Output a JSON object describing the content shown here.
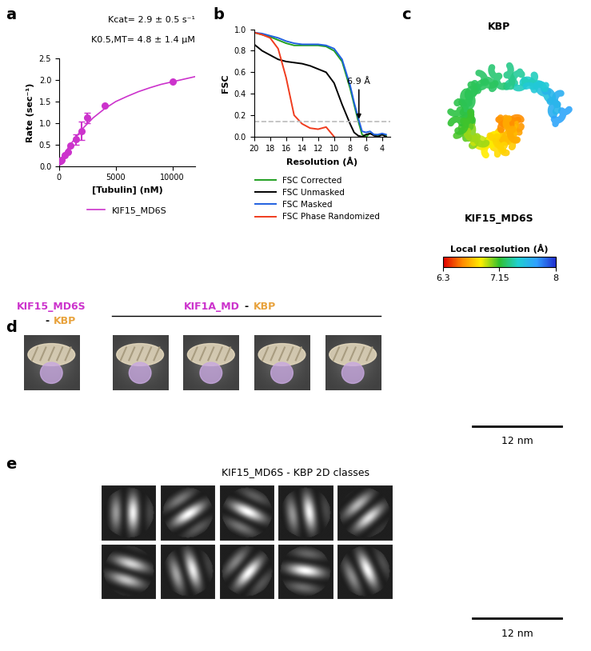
{
  "chart_data": [
    {
      "panel": "a",
      "type": "scatter",
      "color": "#cc33cc",
      "marker": "o",
      "annotations": [
        "Kcat= 2.9 ± 0.5 s⁻¹",
        "K0.5,MT= 4.8 ± 1.4 µM"
      ],
      "xlabel": "[Tubulin] (nM)",
      "ylabel": "Rate (sec⁻¹)",
      "xlim": [
        0,
        12000
      ],
      "ylim": [
        0,
        2.5
      ],
      "xticks": [
        0,
        5000,
        10000
      ],
      "yticks": [
        {
          "value": 0,
          "label": "0.0"
        },
        {
          "value": 0.5,
          "label": "0.5"
        },
        {
          "value": 1.0,
          "label": "1.0"
        },
        {
          "value": 1.5,
          "label": "1.5"
        },
        {
          "value": 2.0,
          "label": "2.0"
        },
        {
          "value": 2.5,
          "label": "2.5"
        }
      ],
      "legend": "upper center",
      "series": [
        {
          "type": "scatter",
          "x": [
            0,
            125,
            250,
            500,
            750,
            1000,
            1500,
            2000,
            2500,
            4000,
            10000
          ],
          "values": [
            0.1,
            0.12,
            0.15,
            0.25,
            0.33,
            0.48,
            0.62,
            0.82,
            1.12,
            1.4,
            1.97
          ],
          "errors": [
            null,
            null,
            null,
            null,
            null,
            null,
            0.12,
            0.22,
            0.12,
            null,
            null
          ]
        },
        {
          "type": "line",
          "name": "KIF15_MD6S",
          "x": [
            0,
            1000,
            2000,
            3000,
            4000,
            5000,
            6000,
            7000,
            8000,
            9000,
            10000,
            11000,
            12000
          ],
          "values": [
            0.1,
            0.5,
            0.85,
            1.12,
            1.33,
            1.5,
            1.62,
            1.73,
            1.82,
            1.9,
            1.96,
            2.02,
            2.08
          ]
        }
      ]
    },
    {
      "panel": "b",
      "type": "line",
      "xlabel": "Resolution (Å)",
      "ylabel": "FSC",
      "xlim": [
        20,
        3
      ],
      "ylim": [
        0,
        1.0
      ],
      "xticks": [
        20,
        18,
        16,
        14,
        12,
        10,
        8,
        6,
        4
      ],
      "yticks": [
        {
          "value": 0,
          "label": "0.0"
        },
        {
          "value": 0.2,
          "label": "0.2"
        },
        {
          "value": 0.4,
          "label": "0.4"
        },
        {
          "value": 0.6,
          "label": "0.6"
        },
        {
          "value": 0.8,
          "label": "0.8"
        },
        {
          "value": 1.0,
          "label": "1.0"
        }
      ],
      "threshold": 0.143,
      "annotation": {
        "text": "6.9 Å",
        "x": 6.9
      },
      "legend": "upper left",
      "x": [
        20,
        19,
        18,
        17,
        16,
        15,
        14,
        13,
        12,
        11,
        10,
        9,
        8,
        7.5,
        7,
        6.5,
        6,
        5.5,
        5,
        4.5,
        4,
        3.5
      ],
      "series": [
        {
          "name": "FSC Corrected",
          "color": "#22a022",
          "values": [
            0.97,
            0.95,
            0.93,
            0.9,
            0.87,
            0.85,
            0.85,
            0.85,
            0.85,
            0.84,
            0.8,
            0.7,
            0.45,
            0.3,
            0.15,
            0.02,
            0.0,
            0.03,
            0.02,
            0.01,
            0.02,
            0.01
          ]
        },
        {
          "name": "FSC Unmasked",
          "color": "#000000",
          "values": [
            0.86,
            0.8,
            0.76,
            0.72,
            0.7,
            0.69,
            0.68,
            0.66,
            0.63,
            0.6,
            0.5,
            0.3,
            0.12,
            0.04,
            0.01,
            0.0,
            0.02,
            0.03,
            0.01,
            0.0,
            0.02,
            0.0
          ]
        },
        {
          "name": "FSC Masked",
          "color": "#2060e0",
          "values": [
            0.97,
            0.96,
            0.94,
            0.92,
            0.89,
            0.87,
            0.86,
            0.86,
            0.86,
            0.85,
            0.82,
            0.72,
            0.48,
            0.32,
            0.18,
            0.05,
            0.04,
            0.05,
            0.02,
            0.02,
            0.03,
            0.02
          ]
        },
        {
          "name": "FSC Phase Randomized",
          "color": "#f03c1e",
          "values": [
            0.97,
            0.95,
            0.92,
            0.82,
            0.55,
            0.2,
            0.12,
            0.08,
            0.07,
            0.09,
            0.0,
            null,
            null,
            null,
            null,
            null,
            null,
            null,
            null,
            null,
            null,
            null
          ]
        }
      ]
    }
  ],
  "map": {
    "panel": "c",
    "top_label": "KBP",
    "bottom_label": "KIF15_MD6S",
    "colorbar": {
      "label": "Local resolution (Å)",
      "range": [
        6.3,
        8
      ],
      "ticks": [
        6.3,
        7.15,
        8
      ]
    }
  },
  "averages": {
    "panel": "d",
    "separator": "-",
    "motor_color": "#cc33cc",
    "partner_color": "#e8a23c",
    "groups": [
      {
        "motor": "KIF15_MD6S",
        "partner": "KBP"
      },
      {
        "motor": "KIF1A_MD",
        "partner": "KBP"
      }
    ],
    "scale_bar": "12 nm"
  },
  "classes": {
    "panel": "e",
    "title": "KIF15_MD6S - KBP 2D classes",
    "scale_bar": "12 nm"
  }
}
